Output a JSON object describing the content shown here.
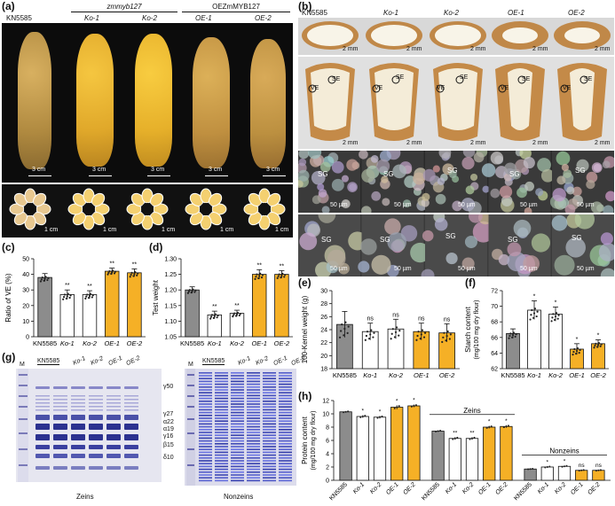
{
  "panels": {
    "a": "(a)",
    "b": "(b)",
    "c": "(c)",
    "d": "(d)",
    "e": "(e)",
    "f": "(f)",
    "g": "(g)",
    "h": "(h)"
  },
  "genotypes": [
    "KN5585",
    "Ko-1",
    "Ko-2",
    "OE-1",
    "OE-2"
  ],
  "panel_a": {
    "group_ko": "zmmyb127",
    "group_oe": "OEZmMYB127",
    "scale_ear": "3 cm",
    "scale_cross": "1 cm",
    "ear_colors": [
      "#c8a048",
      "#e2ae2a",
      "#e8b830",
      "#c89a3a",
      "#c49844"
    ]
  },
  "panel_b": {
    "scale_top": "2 mm",
    "scale_mid": "2 mm",
    "scale_sem": "50 µm",
    "sg": "SG",
    "se": "SE",
    "ve": "VE"
  },
  "panel_g": {
    "m": "M",
    "zeins_title": "Zeins",
    "nonzeins_title": "Nonzeins",
    "bands": [
      "γ50",
      "γ27",
      "α22",
      "α19",
      "γ16",
      "β15",
      "δ10"
    ]
  },
  "colors": {
    "wt": "#8c8c8c",
    "ko": "#ffffff",
    "oe": "#f5b026"
  },
  "chart_data": [
    {
      "id": "c",
      "type": "bar",
      "categories": [
        "KN5585",
        "Ko-1",
        "Ko-2",
        "OE-1",
        "OE-2"
      ],
      "values": [
        38,
        27,
        27,
        42,
        41
      ],
      "errors": [
        2.5,
        3,
        2.5,
        2,
        2.5
      ],
      "sig": [
        "",
        "**",
        "**",
        "**",
        "**"
      ],
      "ylabel": "Ratio of VE (%)",
      "ylim": [
        0,
        50
      ],
      "yticks": [
        0,
        10,
        20,
        30,
        40,
        50
      ]
    },
    {
      "id": "d",
      "type": "bar",
      "categories": [
        "KN5585",
        "Ko-1",
        "Ko-2",
        "OE-1",
        "OE-2"
      ],
      "values": [
        1.2,
        1.12,
        1.125,
        1.25,
        1.25
      ],
      "errors": [
        0.01,
        0.012,
        0.01,
        0.015,
        0.012
      ],
      "sig": [
        "",
        "**",
        "**",
        "**",
        "**"
      ],
      "ylabel": "Test weight",
      "ylim": [
        1.05,
        1.3
      ],
      "yticks": [
        1.05,
        1.1,
        1.15,
        1.2,
        1.25,
        1.3
      ]
    },
    {
      "id": "e",
      "type": "bar",
      "categories": [
        "KN5585",
        "Ko-1",
        "Ko-2",
        "OE-1",
        "OE-2"
      ],
      "values": [
        24.8,
        23.7,
        24.1,
        23.7,
        23.5
      ],
      "errors": [
        2,
        1.3,
        1.5,
        1.3,
        1.4
      ],
      "sig": [
        "",
        "ns",
        "ns",
        "ns",
        "ns"
      ],
      "ylabel": "100-Kernel weight (g)",
      "ylim": [
        18,
        30
      ],
      "yticks": [
        18,
        20,
        22,
        24,
        26,
        28,
        30
      ]
    },
    {
      "id": "f",
      "type": "bar",
      "categories": [
        "KN5585",
        "Ko-1",
        "Ko-2",
        "OE-1",
        "OE-2"
      ],
      "values": [
        66.5,
        69.5,
        69,
        64.5,
        65.2
      ],
      "errors": [
        0.6,
        1.2,
        0.9,
        0.7,
        0.5
      ],
      "sig": [
        "",
        "*",
        "*",
        "*",
        "*"
      ],
      "ylabel": "Starch content",
      "ylabel2": "(mg/100 mg dry flour)",
      "ylim": [
        62,
        72
      ],
      "yticks": [
        62,
        64,
        66,
        68,
        70,
        72
      ]
    },
    {
      "id": "h",
      "type": "bar",
      "groups": [
        {
          "name": "Total",
          "values": [
            10.3,
            9.6,
            9.5,
            11.0,
            11.2
          ],
          "errors": [
            0.1,
            0.2,
            0.2,
            0.3,
            0.2
          ],
          "sig": [
            "",
            "*",
            "*",
            "*",
            "*"
          ]
        },
        {
          "name": "Zeins",
          "values": [
            7.4,
            6.3,
            6.3,
            8.0,
            8.1
          ],
          "errors": [
            0.1,
            0.2,
            0.2,
            0.2,
            0.2
          ],
          "sig": [
            "",
            "**",
            "**",
            "*",
            "*"
          ]
        },
        {
          "name": "Nonzeins",
          "values": [
            1.7,
            2.0,
            2.1,
            1.5,
            1.5
          ],
          "errors": [
            0.05,
            0.1,
            0.1,
            0.08,
            0.08
          ],
          "sig": [
            "",
            "*",
            "*",
            "ns",
            "ns"
          ]
        }
      ],
      "categories": [
        "KN5585",
        "Ko-1",
        "Ko-2",
        "OE-1",
        "OE-2"
      ],
      "ylabel": "Protein content",
      "ylabel2": "(mg/100 mg dry flour)",
      "ylim": [
        0,
        12
      ],
      "yticks": [
        0,
        2,
        4,
        6,
        8,
        10,
        12
      ]
    }
  ]
}
